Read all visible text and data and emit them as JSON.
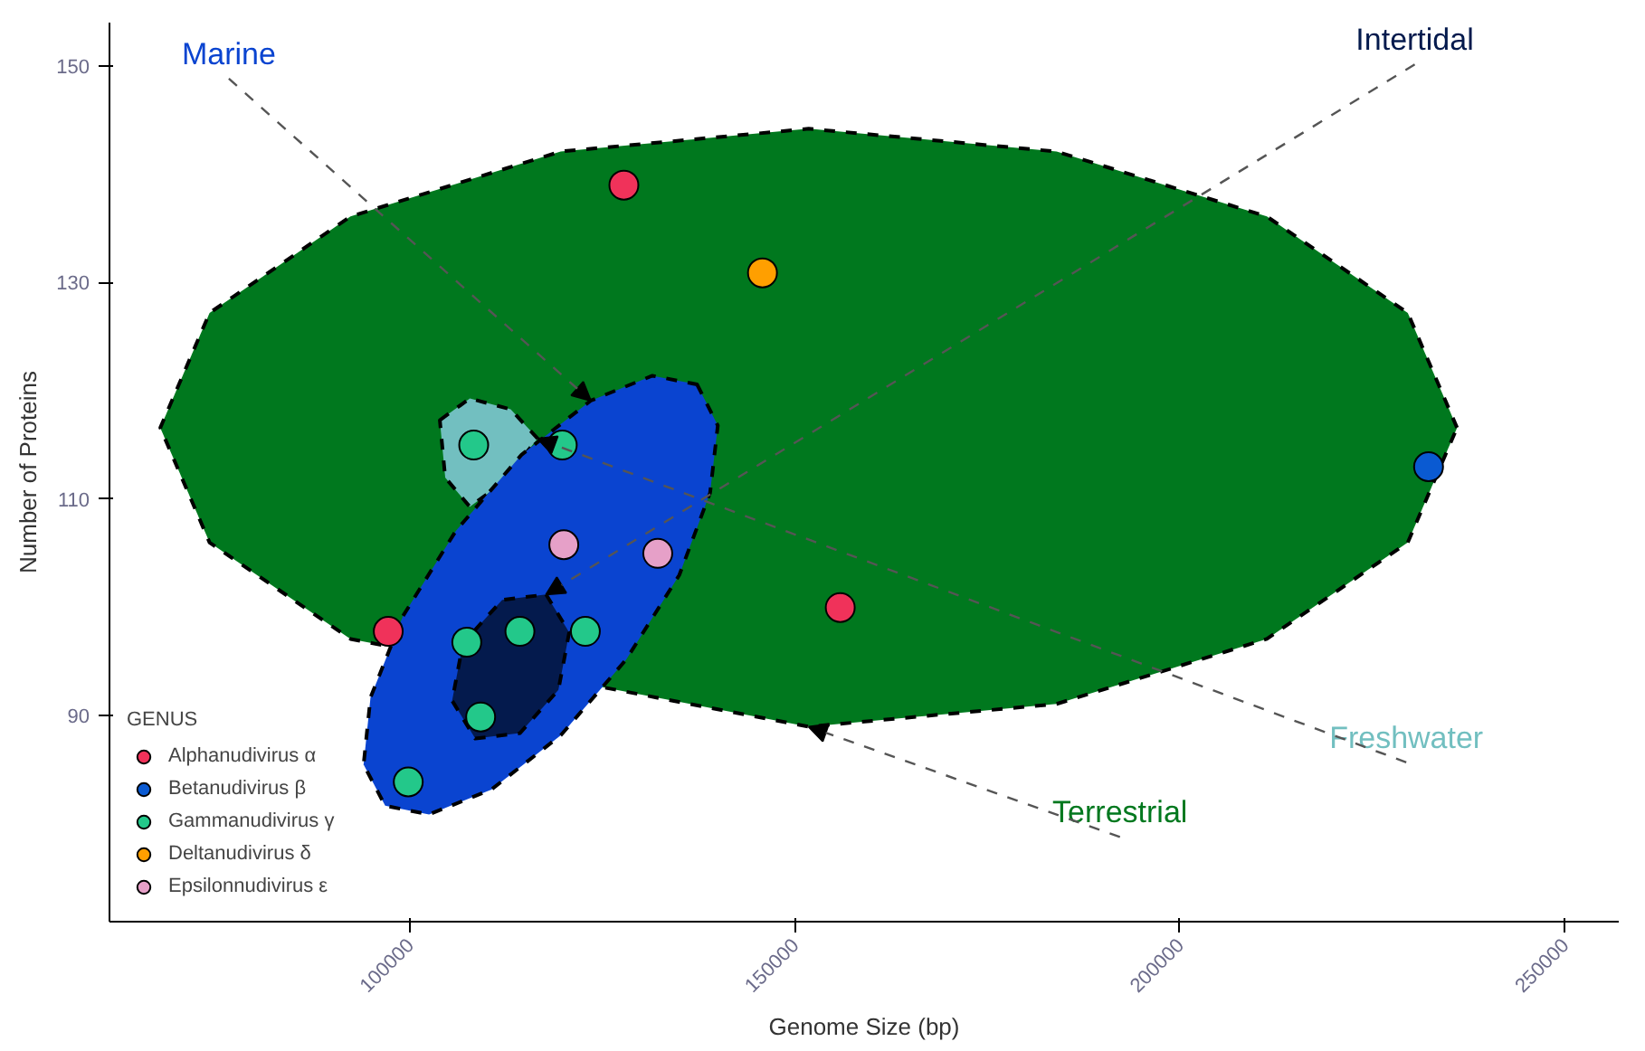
{
  "chart_data": {
    "type": "scatter",
    "xlabel": "Genome Size (bp)",
    "ylabel": "Number of Proteins",
    "legend_title": "GENUS",
    "legend": "bottom left",
    "marker": "circle",
    "grid": false,
    "xlim": [
      61000,
      257000
    ],
    "ylim": [
      71,
      154
    ],
    "xticks": [
      100000,
      150000,
      200000,
      250000
    ],
    "yticks": [
      90,
      110,
      130,
      150
    ],
    "series": [
      {
        "name": "Terrestrial",
        "type": "area",
        "marker": "none",
        "line_style": "dashed",
        "color": "#00781e",
        "x": [
          236000,
          229600,
          211300,
          184000,
          151800,
          119600,
          92300,
          74000,
          67600,
          74000,
          92300,
          151800,
          184000,
          211300,
          229600
        ],
        "values": [
          116.6,
          127.2,
          136.1,
          142.1,
          144.2,
          142.1,
          136.1,
          127.2,
          116.6,
          106.0,
          97.1,
          89.0,
          91.1,
          97.1,
          106.0
        ]
      },
      {
        "name": "Freshwater",
        "type": "area",
        "marker": "none",
        "line_style": "dashed",
        "color": "#72bfc0",
        "x": [
          103900,
          107800,
          113100,
          116600,
          112000,
          107800,
          104600
        ],
        "values": [
          117.3,
          119.3,
          118.3,
          115.6,
          111.5,
          109.3,
          112.0
        ]
      },
      {
        "name": "Marine",
        "type": "area",
        "marker": "none",
        "line_style": "dashed",
        "color": "#0a44d0",
        "x": [
          137300,
          140000,
          139000,
          135000,
          128100,
          119600,
          110600,
          102500,
          96800,
          94000,
          94900,
          99100,
          106000,
          114500,
          123500,
          131500
        ],
        "values": [
          120.6,
          116.8,
          110.6,
          103.0,
          95.2,
          88.2,
          83.2,
          80.9,
          81.7,
          85.5,
          91.7,
          99.2,
          107.1,
          114.1,
          119.1,
          121.4
        ]
      },
      {
        "name": "Intertidal",
        "type": "area",
        "marker": "none",
        "line_style": "dashed",
        "color": "#041a4d",
        "x": [
          117700,
          120700,
          119300,
          114300,
          108500,
          105500,
          106900,
          112000
        ],
        "values": [
          101.2,
          97.7,
          92.4,
          88.4,
          87.9,
          91.4,
          96.7,
          100.7
        ]
      },
      {
        "name": "Alphanudivirus α",
        "color": "#f0325a",
        "x": [
          127800,
          97200,
          155900
        ],
        "values": [
          139.0,
          97.8,
          100.0
        ]
      },
      {
        "name": "Betanudivirus β",
        "color": "#0a5ad2",
        "x": [
          232300
        ],
        "values": [
          113.0
        ]
      },
      {
        "name": "Gammanudivirus γ",
        "color": "#23c88a",
        "x": [
          108300,
          119800,
          107400,
          114300,
          122800,
          109200,
          99800
        ],
        "values": [
          115.0,
          115.0,
          96.8,
          97.8,
          97.8,
          89.9,
          83.9
        ]
      },
      {
        "name": "Deltanudivirus δ",
        "color": "#ff9f00",
        "x": [
          145800
        ],
        "values": [
          130.9
        ]
      },
      {
        "name": "Epsilonnudivirus ε",
        "color": "#e6a0c8",
        "x": [
          120000,
          132200
        ],
        "values": [
          105.8,
          105.0
        ]
      }
    ]
  }
}
